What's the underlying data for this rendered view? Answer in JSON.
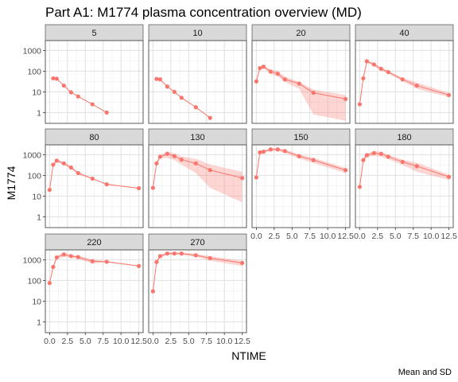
{
  "chart_data": {
    "type": "line",
    "title": "Part A1: M1774 plasma concentration overview (MD)",
    "xlabel": "NTIME",
    "ylabel": "M1774",
    "caption": "Mean and SD",
    "y_scale": "log10",
    "ylim": [
      0.3,
      3000
    ],
    "xlim": [
      -0.6,
      13.1
    ],
    "y_ticks": [
      1,
      10,
      100,
      1000
    ],
    "y_tick_labels": [
      "1",
      "10",
      "100",
      "1000"
    ],
    "x_ticks": [
      0,
      2.5,
      5,
      7.5,
      10,
      12.5
    ],
    "x_tick_labels": [
      "0.0",
      "2.5",
      "5.0",
      "7.5",
      "10.0",
      "12.5"
    ],
    "grid": true,
    "series_color": "#F8766D",
    "ribbon_color": "#F8766D",
    "panel_background": "#ffffff",
    "strip_background": "#d9d9d9",
    "panels": [
      {
        "label": "5",
        "x": [
          0.5,
          1,
          2,
          3,
          4,
          6,
          8
        ],
        "y": [
          45,
          43,
          20,
          9.5,
          6,
          2.5,
          1
        ],
        "lower": [
          45,
          43,
          20,
          9.5,
          6,
          2.5,
          1
        ],
        "upper": [
          45,
          43,
          20,
          9.5,
          6,
          2.5,
          1
        ]
      },
      {
        "label": "10",
        "x": [
          0.5,
          1,
          2,
          3,
          4,
          6,
          8
        ],
        "y": [
          42,
          40,
          18,
          10,
          5.2,
          1.8,
          0.55
        ],
        "lower": [
          42,
          40,
          18,
          10,
          5.2,
          1.8,
          0.55
        ],
        "upper": [
          42,
          40,
          18,
          10,
          5.2,
          1.8,
          0.55
        ]
      },
      {
        "label": "20",
        "x": [
          0,
          0.5,
          1,
          2,
          3,
          4,
          6,
          8,
          12.5
        ],
        "y": [
          32,
          140,
          165,
          95,
          75,
          40,
          25,
          9,
          4.5
        ],
        "lower": [
          32,
          120,
          140,
          75,
          55,
          30,
          14,
          0.8,
          0.4
        ],
        "upper": [
          32,
          165,
          200,
          120,
          100,
          55,
          30,
          13,
          7
        ]
      },
      {
        "label": "40",
        "x": [
          0,
          0.5,
          1,
          2,
          3,
          4,
          6,
          8,
          12.5
        ],
        "y": [
          2.5,
          45,
          300,
          210,
          130,
          90,
          40,
          20,
          7
        ],
        "lower": [
          2.5,
          35,
          260,
          170,
          105,
          75,
          33,
          14,
          5.5
        ],
        "upper": [
          2.5,
          55,
          340,
          250,
          155,
          105,
          48,
          28,
          9
        ]
      },
      {
        "label": "80",
        "x": [
          0,
          0.5,
          1,
          2,
          3,
          4,
          6,
          8,
          12.5
        ],
        "y": [
          20,
          330,
          520,
          380,
          240,
          130,
          70,
          37,
          24
        ],
        "lower": [
          20,
          290,
          430,
          320,
          210,
          110,
          65,
          35,
          23
        ],
        "upper": [
          20,
          370,
          610,
          440,
          270,
          150,
          75,
          39,
          25
        ]
      },
      {
        "label": "130",
        "x": [
          0,
          0.5,
          1,
          2,
          3,
          4,
          6,
          8,
          12.5
        ],
        "y": [
          25,
          380,
          800,
          1100,
          850,
          580,
          380,
          180,
          75
        ],
        "lower": [
          25,
          300,
          650,
          700,
          550,
          330,
          130,
          25,
          5
        ],
        "upper": [
          25,
          460,
          950,
          1500,
          1150,
          830,
          630,
          340,
          150
        ]
      },
      {
        "label": "150",
        "x": [
          0,
          0.5,
          1,
          2,
          3,
          4,
          6,
          8,
          12.5
        ],
        "y": [
          80,
          1300,
          1400,
          1800,
          1800,
          1500,
          850,
          550,
          180
        ],
        "lower": [
          80,
          1100,
          1200,
          1500,
          1500,
          1200,
          650,
          400,
          130
        ],
        "upper": [
          80,
          1500,
          1600,
          2100,
          2100,
          1800,
          1050,
          700,
          230
        ]
      },
      {
        "label": "180",
        "x": [
          0,
          0.5,
          1,
          2,
          3,
          4,
          6,
          8,
          12.5
        ],
        "y": [
          28,
          550,
          950,
          1200,
          1100,
          800,
          450,
          280,
          85
        ],
        "lower": [
          28,
          450,
          750,
          900,
          800,
          600,
          320,
          150,
          60
        ],
        "upper": [
          28,
          650,
          1150,
          1500,
          1400,
          1000,
          580,
          410,
          110
        ]
      },
      {
        "label": "220",
        "x": [
          0,
          0.5,
          1,
          2,
          3,
          4,
          6,
          8,
          12.5
        ],
        "y": [
          75,
          450,
          1300,
          1800,
          1500,
          1350,
          850,
          800,
          500
        ],
        "lower": [
          75,
          380,
          1050,
          1400,
          1250,
          1100,
          650,
          750,
          480
        ],
        "upper": [
          75,
          520,
          1550,
          2200,
          1750,
          1600,
          1050,
          850,
          520
        ]
      },
      {
        "label": "270",
        "x": [
          0,
          0.5,
          1,
          2,
          3,
          4,
          6,
          8,
          12.5
        ],
        "y": [
          30,
          780,
          1500,
          2000,
          2000,
          2000,
          1650,
          1200,
          700
        ],
        "lower": [
          30,
          650,
          1200,
          1700,
          1700,
          1700,
          1400,
          900,
          500
        ],
        "upper": [
          30,
          910,
          1800,
          2300,
          2300,
          2300,
          1900,
          1500,
          900
        ]
      }
    ]
  }
}
